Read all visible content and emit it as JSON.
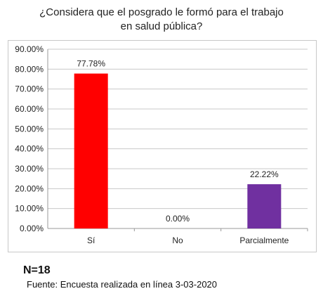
{
  "title_line1": "¿Considera que el posgrado le formó para el trabajo",
  "title_line2": "en salud pública?",
  "sample_size": "N=18",
  "source": "Fuente: Encuesta realizada en línea 3-03-2020",
  "chart_data": {
    "type": "bar",
    "categories": [
      "Sí",
      "No",
      "Parcialmente"
    ],
    "values": [
      77.78,
      0.0,
      22.22
    ],
    "value_labels": [
      "77.78%",
      "0.00%",
      "22.22%"
    ],
    "colors": [
      "#ff0000",
      "#8b8b8b",
      "#7030a0"
    ],
    "ylim": [
      0,
      90
    ],
    "yticks": [
      0,
      10,
      20,
      30,
      40,
      50,
      60,
      70,
      80,
      90
    ],
    "ytick_labels": [
      "0.00%",
      "10.00%",
      "20.00%",
      "30.00%",
      "40.00%",
      "50.00%",
      "60.00%",
      "70.00%",
      "80.00%",
      "90.00%"
    ],
    "grid": true,
    "legend": false
  }
}
